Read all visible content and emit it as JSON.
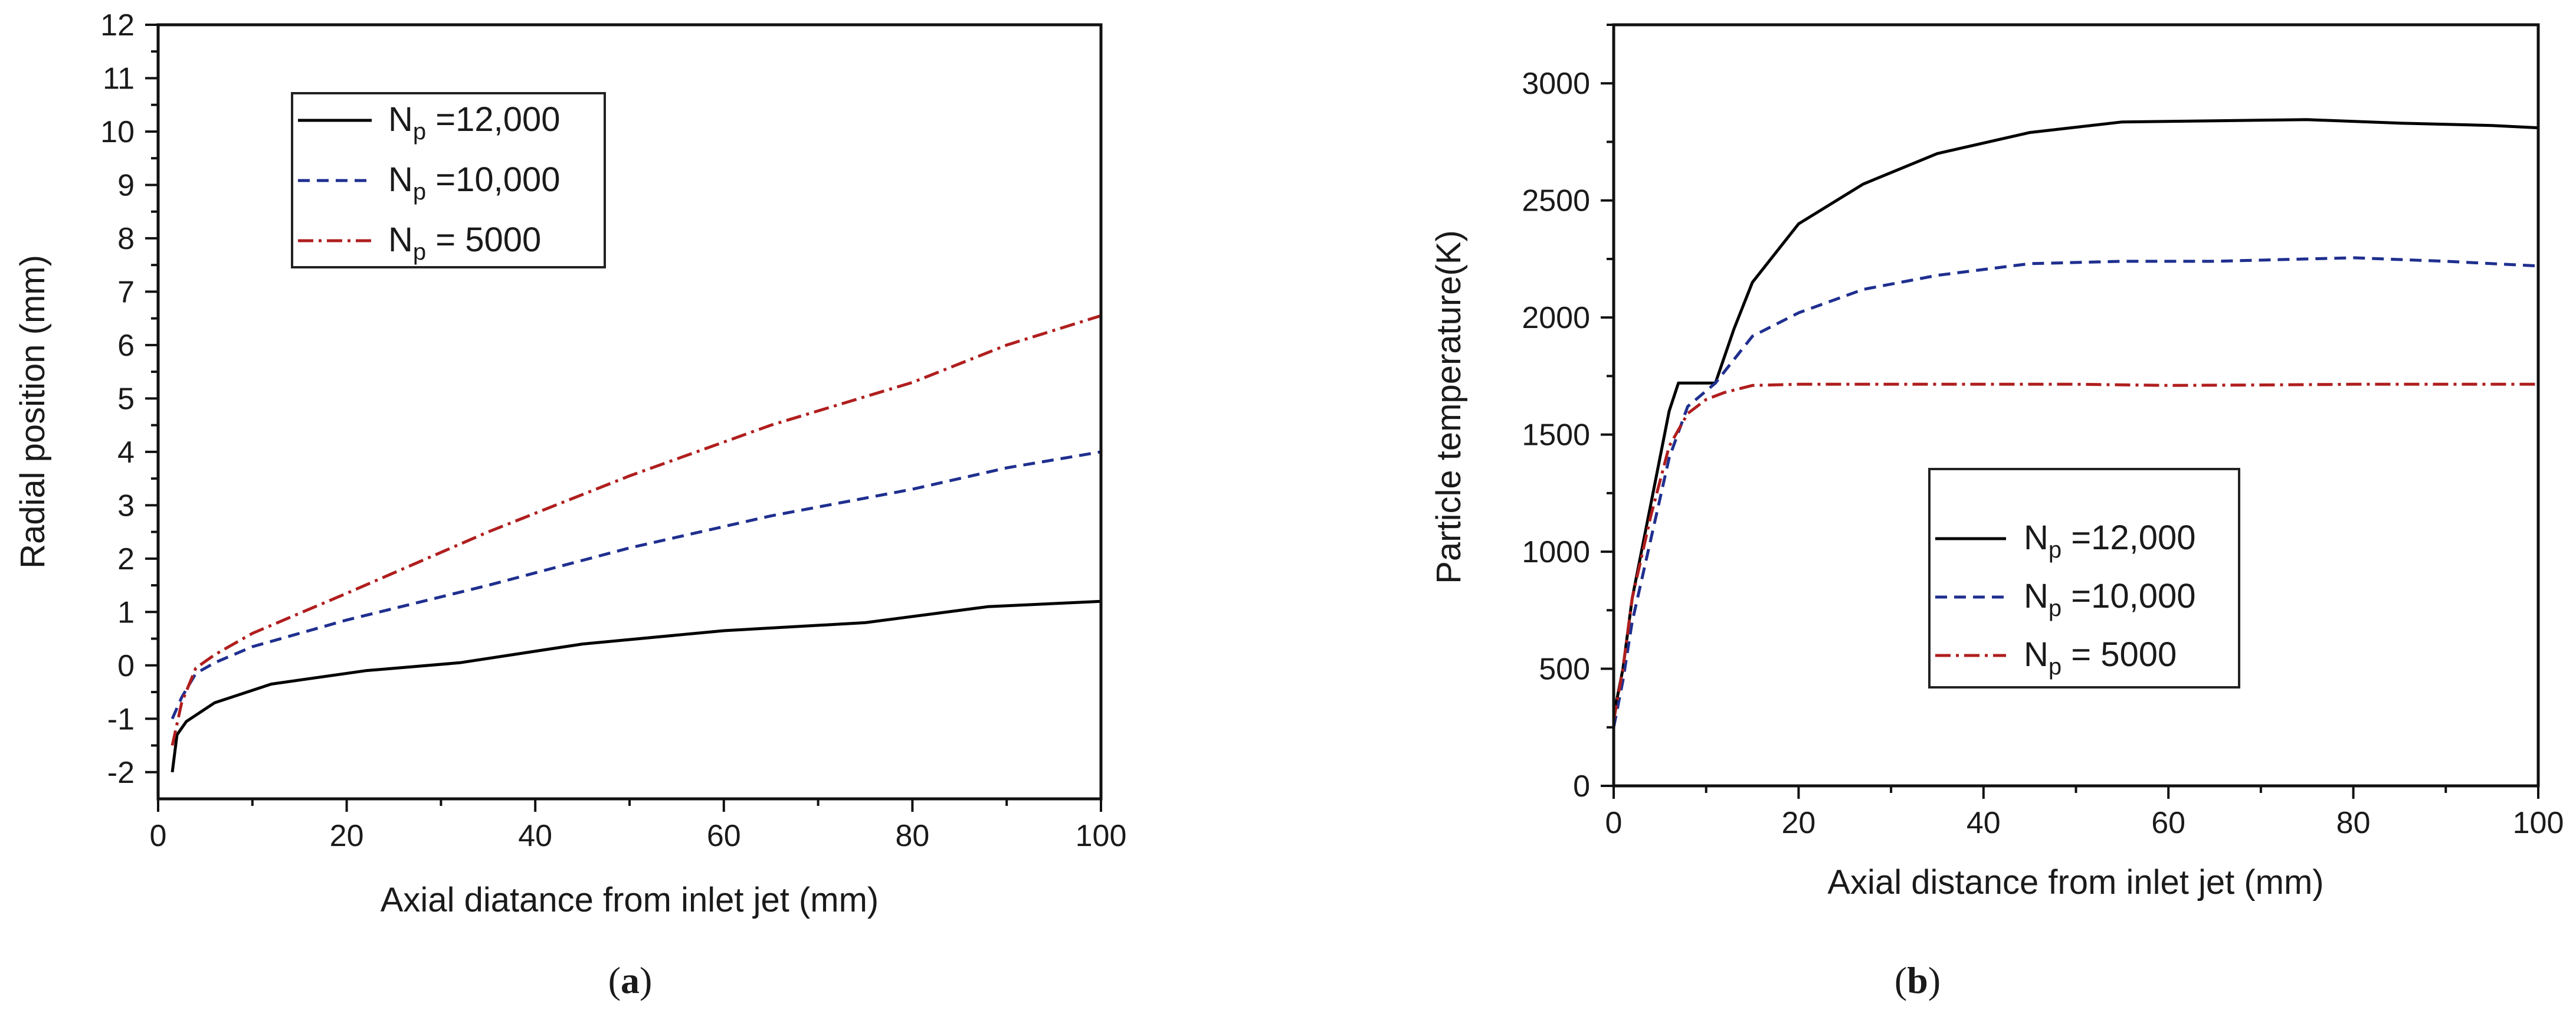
{
  "chart_data": [
    {
      "id": "a",
      "type": "line",
      "title": "",
      "xlabel": "Axial diatance from inlet jet (mm)",
      "ylabel": "Radial position (mm)",
      "xlim": [
        0,
        100
      ],
      "ylim": [
        -2.5,
        12
      ],
      "xticks": [
        0,
        20,
        40,
        60,
        80,
        100
      ],
      "yticks": [
        -2,
        -1,
        0,
        1,
        2,
        3,
        4,
        5,
        6,
        7,
        8,
        9,
        10,
        11,
        12
      ],
      "grid": false,
      "legend_position": "top-left",
      "caption_open": "(",
      "caption_label": "a",
      "caption_close": ")",
      "series": [
        {
          "name": "N_p = 12,000",
          "legend_main": "N",
          "legend_sub": "p",
          "legend_value": " =12,000",
          "color": "#000000",
          "style": "solid",
          "x": [
            1.5,
            2,
            3,
            6,
            12,
            22,
            32,
            45,
            60,
            75,
            88,
            100
          ],
          "y": [
            -2.0,
            -1.3,
            -1.05,
            -0.7,
            -0.35,
            -0.1,
            0.05,
            0.4,
            0.65,
            0.8,
            1.1,
            1.2
          ]
        },
        {
          "name": "N_p = 10,000",
          "legend_main": "N",
          "legend_sub": "p",
          "legend_value": " =10,000",
          "color": "#1f2f8f",
          "style": "dashed",
          "x": [
            1.5,
            2.5,
            4,
            6,
            10,
            20,
            35,
            50,
            65,
            80,
            90,
            100
          ],
          "y": [
            -1.0,
            -0.6,
            -0.15,
            0.05,
            0.35,
            0.85,
            1.5,
            2.2,
            2.8,
            3.3,
            3.7,
            4.0
          ]
        },
        {
          "name": "N_p = 5000",
          "legend_main": "N",
          "legend_sub": "p",
          "legend_value": " = 5000",
          "color": "#b01e1e",
          "style": "dashdot",
          "x": [
            1.5,
            2.5,
            4,
            6,
            10,
            20,
            35,
            50,
            65,
            80,
            90,
            100
          ],
          "y": [
            -1.5,
            -0.7,
            -0.05,
            0.2,
            0.6,
            1.35,
            2.5,
            3.55,
            4.5,
            5.3,
            6.0,
            6.55
          ]
        }
      ]
    },
    {
      "id": "b",
      "type": "line",
      "title": "",
      "xlabel": "Axial distance from inlet jet (mm)",
      "ylabel": "Particle temperature(K)",
      "xlim": [
        0,
        100
      ],
      "ylim": [
        0,
        3250
      ],
      "xticks": [
        0,
        20,
        40,
        60,
        80,
        100
      ],
      "yticks": [
        0,
        500,
        1000,
        1500,
        2000,
        2500,
        3000
      ],
      "grid": false,
      "legend_position": "center-right",
      "caption_open": "(",
      "caption_label": "b",
      "caption_close": ")",
      "series": [
        {
          "name": "N_p = 12,000",
          "legend_main": "N",
          "legend_sub": "p",
          "legend_value": " =12,000",
          "color": "#000000",
          "style": "solid",
          "x": [
            0,
            1,
            2,
            4,
            6,
            7,
            8,
            11,
            13,
            15,
            20,
            27,
            35,
            45,
            55,
            65,
            75,
            85,
            95,
            100
          ],
          "y": [
            300,
            500,
            800,
            1200,
            1600,
            1720,
            1720,
            1720,
            1950,
            2150,
            2400,
            2570,
            2700,
            2790,
            2835,
            2840,
            2845,
            2830,
            2820,
            2810
          ]
        },
        {
          "name": "N_p = 10,000",
          "legend_main": "N",
          "legend_sub": "p",
          "legend_value": " =10,000",
          "color": "#1f2f8f",
          "style": "dashed",
          "x": [
            0,
            1,
            2,
            4,
            6,
            8,
            11,
            13,
            15,
            20,
            27,
            35,
            45,
            55,
            65,
            75,
            80,
            90,
            100
          ],
          "y": [
            250,
            450,
            700,
            1050,
            1400,
            1620,
            1720,
            1820,
            1920,
            2020,
            2120,
            2180,
            2230,
            2240,
            2240,
            2250,
            2255,
            2240,
            2220
          ]
        },
        {
          "name": "N_p = 5000",
          "legend_main": "N",
          "legend_sub": "p",
          "legend_value": " = 5000",
          "color": "#b01e1e",
          "style": "dashdot",
          "x": [
            0,
            1,
            2,
            4,
            6,
            8,
            10,
            12,
            15,
            20,
            30,
            40,
            50,
            60,
            70,
            80,
            90,
            100
          ],
          "y": [
            280,
            500,
            800,
            1150,
            1450,
            1590,
            1650,
            1680,
            1710,
            1715,
            1715,
            1715,
            1715,
            1710,
            1712,
            1715,
            1715,
            1715
          ]
        }
      ]
    }
  ]
}
